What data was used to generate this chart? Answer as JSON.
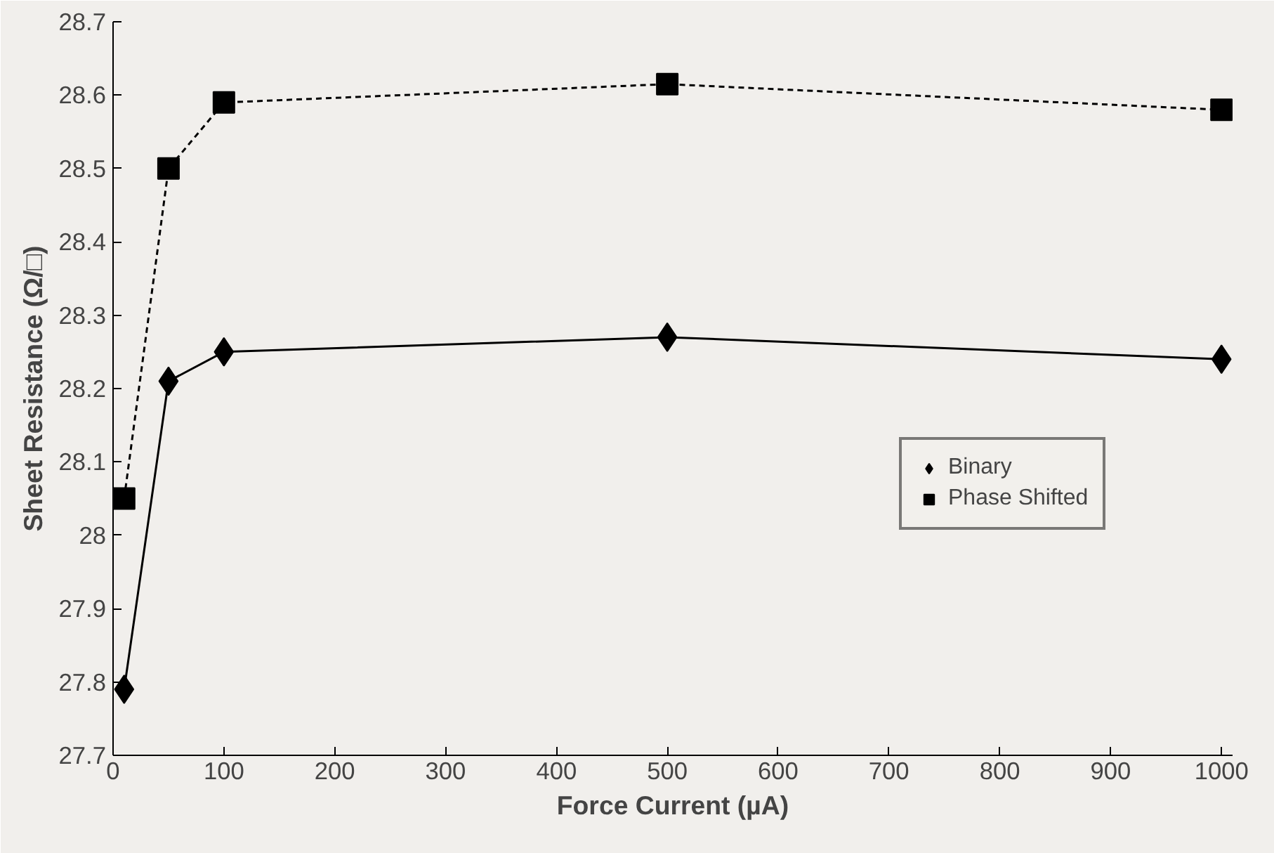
{
  "chart_data": {
    "type": "line",
    "xlabel": "Force Current (µA)",
    "ylabel": "Sheet Resistance (Ω/□)",
    "x": [
      10,
      50,
      100,
      500,
      1000
    ],
    "series": [
      {
        "name": "Binary",
        "color": "#000000",
        "values": [
          27.79,
          28.21,
          28.25,
          28.27,
          28.24
        ],
        "marker": "diamond",
        "line_style": "solid"
      },
      {
        "name": "Phase Shifted",
        "color": "#000000",
        "values": [
          28.05,
          28.5,
          28.59,
          28.615,
          28.58
        ],
        "marker": "square",
        "line_style": "dashed"
      }
    ],
    "xlim": [
      0,
      1010
    ],
    "ylim": [
      27.7,
      28.7
    ],
    "xticks": [
      0,
      100,
      200,
      300,
      400,
      500,
      600,
      700,
      800,
      900,
      1000
    ],
    "yticks": [
      27.7,
      27.8,
      27.9,
      {
        "value": 28.0,
        "label": "28"
      },
      28.1,
      28.2,
      28.3,
      28.4,
      28.5,
      28.6,
      28.7
    ],
    "grid": false,
    "legend": "right"
  }
}
